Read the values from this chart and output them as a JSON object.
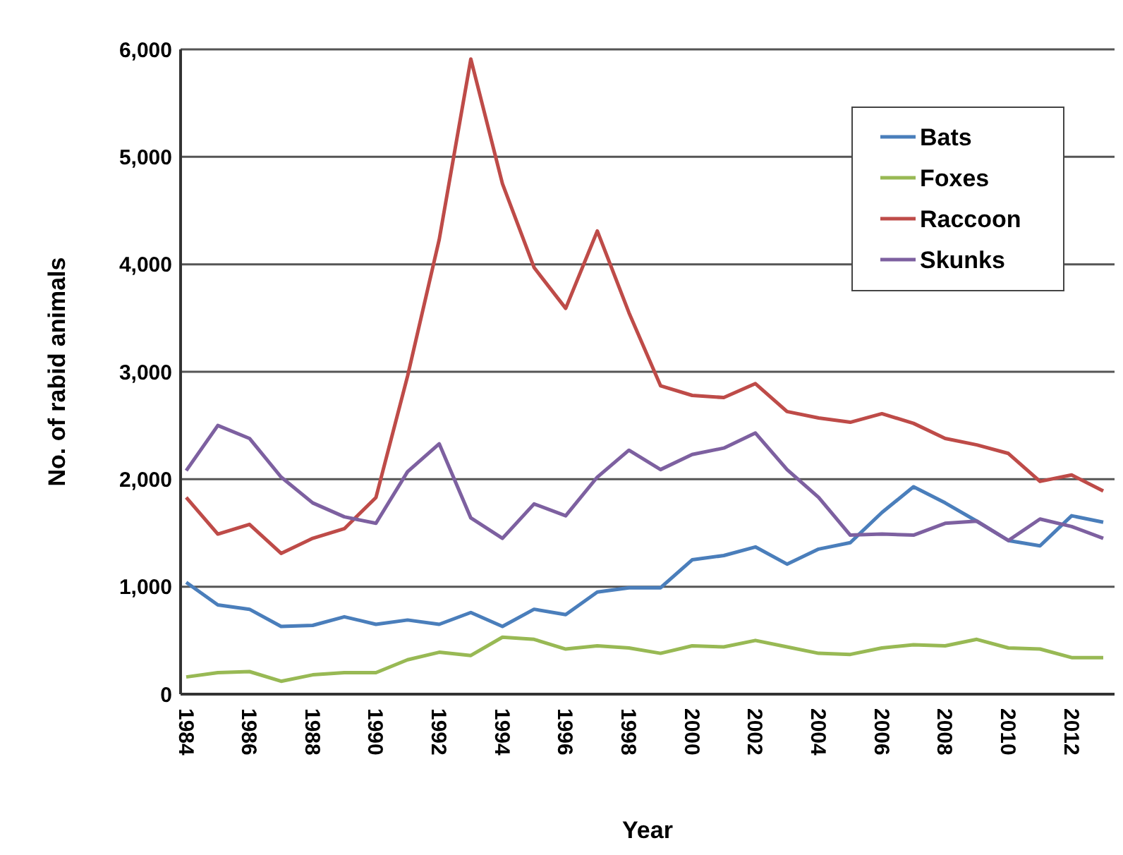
{
  "chart_data": {
    "type": "line",
    "xlabel": "Year",
    "ylabel": "No. of rabid animals",
    "categories": [
      "1984",
      null,
      "1986",
      null,
      "1988",
      null,
      "1990",
      null,
      "1992",
      null,
      "1994",
      null,
      "1996",
      null,
      "1998",
      null,
      "2000",
      null,
      "2002",
      null,
      "2004",
      null,
      "2006",
      null,
      "2008",
      null,
      "2010",
      null,
      "2012",
      null
    ],
    "series": [
      {
        "name": "Bats",
        "color": "#4a7ebb",
        "values": [
          1040,
          830,
          790,
          630,
          640,
          720,
          650,
          690,
          650,
          760,
          630,
          790,
          740,
          950,
          990,
          990,
          1250,
          1290,
          1370,
          1210,
          1350,
          1410,
          1690,
          1930,
          1780,
          1610,
          1430,
          1380,
          1660,
          1600
        ]
      },
      {
        "name": "Foxes",
        "color": "#98b954",
        "values": [
          160,
          200,
          210,
          120,
          180,
          200,
          200,
          320,
          390,
          360,
          530,
          510,
          420,
          450,
          430,
          380,
          450,
          440,
          500,
          440,
          380,
          370,
          430,
          460,
          450,
          510,
          430,
          420,
          340,
          340
        ]
      },
      {
        "name": "Raccoon",
        "color": "#be4b48",
        "values": [
          1830,
          1490,
          1580,
          1310,
          1450,
          1540,
          1830,
          2960,
          4230,
          5910,
          4750,
          3970,
          3590,
          4310,
          3550,
          2870,
          2780,
          2760,
          2890,
          2630,
          2570,
          2530,
          2610,
          2520,
          2380,
          2320,
          2240,
          1980,
          2040,
          1890
        ]
      },
      {
        "name": "Skunks",
        "color": "#7d60a0",
        "values": [
          2080,
          2500,
          2380,
          2020,
          1780,
          1650,
          1590,
          2070,
          2330,
          1640,
          1450,
          1770,
          1660,
          2020,
          2270,
          2090,
          2230,
          2290,
          2430,
          2090,
          1830,
          1480,
          1490,
          1480,
          1590,
          1610,
          1430,
          1630,
          1560,
          1450
        ]
      }
    ],
    "ylim": [
      0,
      6000
    ],
    "yticks": [
      0,
      {
        "value": 1000,
        "label": "1,000"
      },
      {
        "value": 2000,
        "label": "2,000"
      },
      {
        "value": 3000,
        "label": "3,000"
      },
      {
        "value": 4000,
        "label": "4,000"
      },
      {
        "value": 5000,
        "label": "5,000"
      },
      {
        "value": 6000,
        "label": "6,000"
      }
    ],
    "grid": "y",
    "legend": "top right",
    "marker": "none",
    "line_style": "solid"
  }
}
